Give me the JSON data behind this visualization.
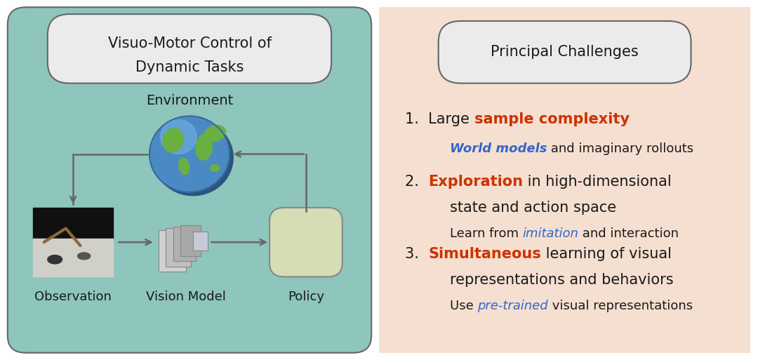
{
  "left_bg_color": "#8ec5bc",
  "right_bg_color": "#f5dfd0",
  "left_title_line1": "Visuo-Motor Control of",
  "left_title_line2": "Dynamic Tasks",
  "right_title": "Principal Challenges",
  "title_box_color": "#ebebeb",
  "title_box_edge_color": "#666666",
  "env_label": "Environment",
  "obs_label": "Observation",
  "vm_label": "Vision Model",
  "policy_label": "Policy",
  "policy_box_color": "#d5ddb5",
  "policy_box_edge_color": "#888888",
  "arrow_color": "#666666",
  "red_color": "#cc3300",
  "blue_color": "#3366cc",
  "black_color": "#1a1a1a",
  "label_fontsize": 13,
  "title_fontsize": 15,
  "challenge_num_fontsize": 15,
  "challenge_fontsize": 15,
  "sub_fontsize": 13
}
